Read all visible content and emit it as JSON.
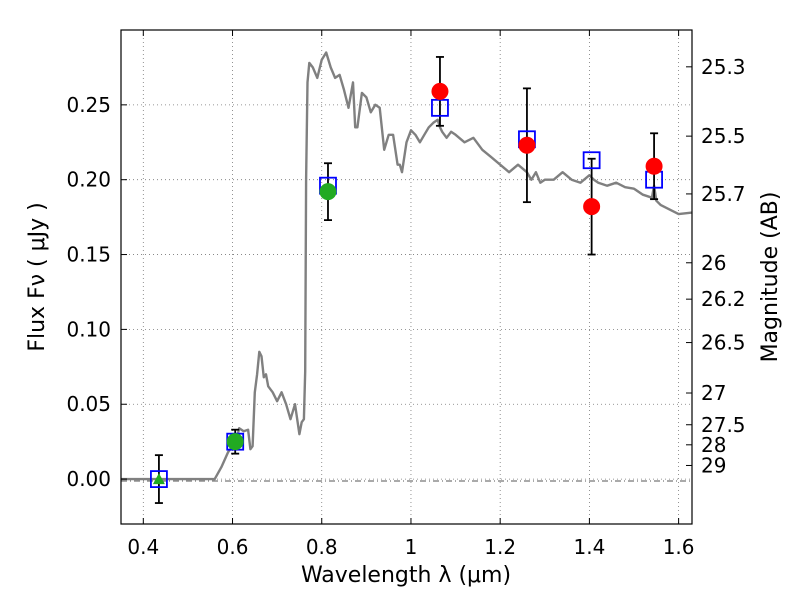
{
  "chart_data": {
    "type": "scatter",
    "title": "",
    "xlabel": "Wavelength  λ (μm)",
    "ylabel": "Flux  Fν  ( μJy )",
    "ylabel_right": "Magnitude (AB)",
    "xlim": [
      0.35,
      1.63
    ],
    "ylim": [
      -0.03,
      0.3
    ],
    "grid": true,
    "x_ticks": [
      0.4,
      0.6,
      0.8,
      1.0,
      1.2,
      1.4,
      1.6
    ],
    "x_tick_labels": [
      "0.4",
      "0.6",
      "0.8",
      "1",
      "1.2",
      "1.4",
      "1.6"
    ],
    "y_ticks": [
      0.0,
      0.05,
      0.1,
      0.15,
      0.2,
      0.25
    ],
    "y_tick_labels": [
      "0.00",
      "0.05",
      "0.10",
      "0.15",
      "0.20",
      "0.25"
    ],
    "mag_ticks": [
      {
        "label": "25.3",
        "flux": 0.2754
      },
      {
        "label": "25.5",
        "flux": 0.2291
      },
      {
        "label": "25.7",
        "flux": 0.1905
      },
      {
        "label": "26",
        "flux": 0.1445
      },
      {
        "label": "26.2",
        "flux": 0.1202
      },
      {
        "label": "26.5",
        "flux": 0.0912
      },
      {
        "label": "27",
        "flux": 0.0575
      },
      {
        "label": "27.5",
        "flux": 0.0363
      },
      {
        "label": "28",
        "flux": 0.0229
      },
      {
        "label": "29",
        "flux": 0.0091
      }
    ],
    "colors": {
      "model": "#808080",
      "observed": "#ff0000",
      "observed_optical": "#22aa22",
      "model_band": "#0000ff",
      "errorbar": "#000000",
      "grid": "#777777"
    },
    "series": [
      {
        "name": "model spectrum",
        "kind": "line",
        "x": [
          0.35,
          0.56,
          0.575,
          0.59,
          0.6,
          0.61,
          0.615,
          0.625,
          0.635,
          0.64,
          0.645,
          0.65,
          0.655,
          0.66,
          0.665,
          0.67,
          0.675,
          0.68,
          0.69,
          0.7,
          0.71,
          0.72,
          0.73,
          0.74,
          0.75,
          0.755,
          0.76,
          0.763,
          0.765,
          0.768,
          0.772,
          0.78,
          0.79,
          0.8,
          0.81,
          0.82,
          0.83,
          0.84,
          0.85,
          0.86,
          0.87,
          0.875,
          0.88,
          0.89,
          0.9,
          0.91,
          0.92,
          0.93,
          0.94,
          0.95,
          0.96,
          0.97,
          0.975,
          0.98,
          0.99,
          1.0,
          1.01,
          1.02,
          1.03,
          1.04,
          1.05,
          1.06,
          1.065,
          1.07,
          1.08,
          1.09,
          1.1,
          1.12,
          1.14,
          1.16,
          1.18,
          1.2,
          1.22,
          1.24,
          1.26,
          1.27,
          1.28,
          1.29,
          1.3,
          1.32,
          1.34,
          1.36,
          1.38,
          1.4,
          1.41,
          1.42,
          1.44,
          1.46,
          1.48,
          1.5,
          1.52,
          1.54,
          1.545,
          1.55,
          1.56,
          1.58,
          1.6,
          1.63
        ],
        "y": [
          0.0,
          0.0,
          0.008,
          0.018,
          0.022,
          0.028,
          0.034,
          0.032,
          0.033,
          0.02,
          0.022,
          0.058,
          0.07,
          0.085,
          0.082,
          0.068,
          0.07,
          0.062,
          0.058,
          0.052,
          0.058,
          0.05,
          0.04,
          0.05,
          0.03,
          0.038,
          0.04,
          0.072,
          0.2,
          0.265,
          0.278,
          0.275,
          0.268,
          0.28,
          0.285,
          0.275,
          0.268,
          0.27,
          0.26,
          0.248,
          0.265,
          0.235,
          0.235,
          0.258,
          0.255,
          0.245,
          0.25,
          0.248,
          0.22,
          0.23,
          0.23,
          0.21,
          0.21,
          0.205,
          0.225,
          0.233,
          0.23,
          0.225,
          0.23,
          0.235,
          0.238,
          0.24,
          0.235,
          0.232,
          0.228,
          0.232,
          0.23,
          0.225,
          0.228,
          0.22,
          0.215,
          0.21,
          0.205,
          0.21,
          0.205,
          0.2,
          0.205,
          0.198,
          0.2,
          0.2,
          0.205,
          0.2,
          0.198,
          0.203,
          0.2,
          0.198,
          0.196,
          0.198,
          0.195,
          0.194,
          0.19,
          0.188,
          0.196,
          0.186,
          0.183,
          0.18,
          0.177,
          0.178
        ]
      },
      {
        "name": "model band fluxes",
        "kind": "marker",
        "marker": "open-square",
        "x": [
          0.435,
          0.606,
          0.814,
          1.065,
          1.26,
          1.405,
          1.545
        ],
        "y": [
          0.0,
          0.025,
          0.196,
          0.248,
          0.227,
          0.213,
          0.2
        ]
      },
      {
        "name": "observed optical",
        "kind": "marker",
        "marker": "filled-circle-green",
        "x": [
          0.606,
          0.814
        ],
        "y": [
          0.025,
          0.192
        ],
        "err": [
          0.008,
          0.019
        ]
      },
      {
        "name": "observed optical upper",
        "kind": "marker",
        "marker": "filled-triangle-green",
        "x": [
          0.435
        ],
        "y": [
          0.0
        ],
        "err": [
          0.016
        ]
      },
      {
        "name": "observed near-infrared",
        "kind": "marker",
        "marker": "filled-circle-red",
        "x": [
          1.065,
          1.26,
          1.405,
          1.545
        ],
        "y": [
          0.259,
          0.223,
          0.182,
          0.209
        ],
        "err": [
          0.023,
          0.038,
          0.032,
          0.022
        ]
      }
    ]
  }
}
